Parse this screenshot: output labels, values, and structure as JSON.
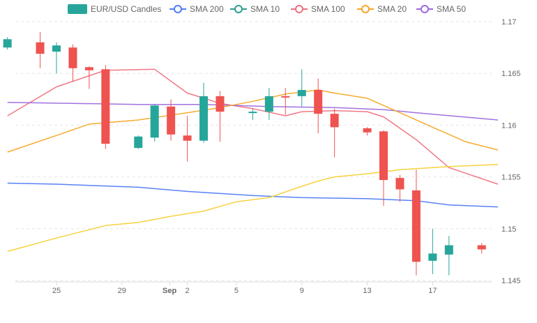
{
  "chart_data": {
    "type": "candlestick",
    "x_tick_labels": [
      "25",
      "29",
      "Sep",
      "2",
      "5",
      "9",
      "13",
      "17"
    ],
    "y_tick_labels": [
      "1.17",
      "1.165",
      "1.16",
      "1.155",
      "1.15",
      "1.145"
    ],
    "ylim": [
      1.145,
      1.17
    ],
    "grid": true,
    "legend_position": "top",
    "colors": {
      "up": "#26a69a",
      "down": "#ef5350",
      "sma200": "#4f7cf5",
      "sma10": "#2a9d8f",
      "sma100": "#f07080",
      "sma20": "#f5a623",
      "sma50": "#9c6ade"
    },
    "legend": [
      {
        "key": "candles",
        "label": "EUR/USD Candles"
      },
      {
        "key": "sma200",
        "label": "SMA 200"
      },
      {
        "key": "sma10",
        "label": "SMA 10"
      },
      {
        "key": "sma100",
        "label": "SMA 100"
      },
      {
        "key": "sma20",
        "label": "SMA 20"
      },
      {
        "key": "sma50",
        "label": "SMA 50"
      }
    ],
    "candles": [
      {
        "date": "2025-08-22",
        "open": 1.1675,
        "high": 1.1685,
        "low": 1.1673,
        "close": 1.1683
      },
      {
        "date": "2025-08-24",
        "open": 1.168,
        "high": 1.169,
        "low": 1.1655,
        "close": 1.1669
      },
      {
        "date": "2025-08-25",
        "open": 1.1671,
        "high": 1.168,
        "low": 1.165,
        "close": 1.1677
      },
      {
        "date": "2025-08-26",
        "open": 1.1675,
        "high": 1.1678,
        "low": 1.1642,
        "close": 1.1655
      },
      {
        "date": "2025-08-27",
        "open": 1.1656,
        "high": 1.1657,
        "low": 1.1635,
        "close": 1.1653
      },
      {
        "date": "2025-08-28",
        "open": 1.1654,
        "high": 1.1658,
        "low": 1.1577,
        "close": 1.1582
      },
      {
        "date": "2025-08-30",
        "open": 1.1578,
        "high": 1.159,
        "low": 1.1577,
        "close": 1.1589
      },
      {
        "date": "2025-08-31",
        "open": 1.1588,
        "high": 1.162,
        "low": 1.1584,
        "close": 1.1619
      },
      {
        "date": "2025-09-01",
        "open": 1.1618,
        "high": 1.1625,
        "low": 1.1585,
        "close": 1.1591
      },
      {
        "date": "2025-09-02",
        "open": 1.159,
        "high": 1.1609,
        "low": 1.1565,
        "close": 1.1585
      },
      {
        "date": "2025-09-03",
        "open": 1.1585,
        "high": 1.1641,
        "low": 1.1583,
        "close": 1.1628
      },
      {
        "date": "2025-09-04",
        "open": 1.1628,
        "high": 1.1633,
        "low": 1.1584,
        "close": 1.1613
      },
      {
        "date": "2025-09-06",
        "open": 1.1613,
        "high": 1.1616,
        "low": 1.1605,
        "close": 1.1613
      },
      {
        "date": "2025-09-07",
        "open": 1.1613,
        "high": 1.1636,
        "low": 1.1605,
        "close": 1.1628
      },
      {
        "date": "2025-09-08",
        "open": 1.1628,
        "high": 1.1636,
        "low": 1.161,
        "close": 1.1627
      },
      {
        "date": "2025-09-09",
        "open": 1.1628,
        "high": 1.1654,
        "low": 1.1618,
        "close": 1.1634
      },
      {
        "date": "2025-09-10",
        "open": 1.1634,
        "high": 1.1645,
        "low": 1.1592,
        "close": 1.1611
      },
      {
        "date": "2025-09-11",
        "open": 1.1611,
        "high": 1.1616,
        "low": 1.1569,
        "close": 1.1598
      },
      {
        "date": "2025-09-13",
        "open": 1.1597,
        "high": 1.1598,
        "low": 1.159,
        "close": 1.1593
      },
      {
        "date": "2025-09-14",
        "open": 1.1594,
        "high": 1.1595,
        "low": 1.1522,
        "close": 1.1547
      },
      {
        "date": "2025-09-15",
        "open": 1.1549,
        "high": 1.1552,
        "low": 1.1526,
        "close": 1.1538
      },
      {
        "date": "2025-09-16",
        "open": 1.1537,
        "high": 1.1557,
        "low": 1.1455,
        "close": 1.1468
      },
      {
        "date": "2025-09-17",
        "open": 1.1469,
        "high": 1.15,
        "low": 1.1456,
        "close": 1.1476
      },
      {
        "date": "2025-09-18",
        "open": 1.1475,
        "high": 1.1493,
        "low": 1.1455,
        "close": 1.1484
      },
      {
        "date": "2025-09-20",
        "open": 1.1484,
        "high": 1.1486,
        "low": 1.1476,
        "close": 1.148
      }
    ],
    "series": [
      {
        "key": "sma200",
        "label": "SMA 200",
        "points": [
          [
            "2025-08-22",
            1.1544
          ],
          [
            "2025-08-25",
            1.1543
          ],
          [
            "2025-08-30",
            1.154
          ],
          [
            "2025-09-02",
            1.1536
          ],
          [
            "2025-09-06",
            1.1532
          ],
          [
            "2025-09-09",
            1.153
          ],
          [
            "2025-09-13",
            1.1529
          ],
          [
            "2025-09-16",
            1.1527
          ],
          [
            "2025-09-18",
            1.1523
          ],
          [
            "2025-09-21",
            1.1521
          ]
        ]
      },
      {
        "key": "sma100",
        "label": "SMA 100",
        "points": [
          [
            "2025-08-22",
            1.1609
          ],
          [
            "2025-08-25",
            1.1637
          ],
          [
            "2025-08-28",
            1.1653
          ],
          [
            "2025-08-31",
            1.1654
          ],
          [
            "2025-09-02",
            1.1631
          ],
          [
            "2025-09-04",
            1.1621
          ],
          [
            "2025-09-06",
            1.1616
          ],
          [
            "2025-09-08",
            1.1609
          ],
          [
            "2025-09-09",
            1.1613
          ],
          [
            "2025-09-11",
            1.1614
          ],
          [
            "2025-09-13",
            1.1613
          ],
          [
            "2025-09-14",
            1.1608
          ],
          [
            "2025-09-16",
            1.1586
          ],
          [
            "2025-09-18",
            1.1559
          ],
          [
            "2025-09-21",
            1.1543
          ]
        ]
      },
      {
        "key": "sma50",
        "label": "SMA 50",
        "points": [
          [
            "2025-08-22",
            1.1622
          ],
          [
            "2025-08-26",
            1.1621
          ],
          [
            "2025-08-30",
            1.162
          ],
          [
            "2025-09-03",
            1.162
          ],
          [
            "2025-09-07",
            1.1618
          ],
          [
            "2025-09-11",
            1.1617
          ],
          [
            "2025-09-14",
            1.1615
          ],
          [
            "2025-09-16",
            1.1612
          ],
          [
            "2025-09-21",
            1.1605
          ]
        ]
      },
      {
        "key": "sma20",
        "label": "SMA 20",
        "points": [
          [
            "2025-08-22",
            1.1574
          ],
          [
            "2025-08-25",
            1.159
          ],
          [
            "2025-08-27",
            1.1601
          ],
          [
            "2025-08-30",
            1.1605
          ],
          [
            "2025-09-02",
            1.1612
          ],
          [
            "2025-09-04",
            1.1617
          ],
          [
            "2025-09-06",
            1.1623
          ],
          [
            "2025-09-08",
            1.163
          ],
          [
            "2025-09-10",
            1.1634
          ],
          [
            "2025-09-11",
            1.1631
          ],
          [
            "2025-09-13",
            1.1626
          ],
          [
            "2025-09-15",
            1.1612
          ],
          [
            "2025-09-17",
            1.1598
          ],
          [
            "2025-09-19",
            1.1584
          ],
          [
            "2025-09-21",
            1.1576
          ]
        ]
      },
      {
        "key": "sma10",
        "label": "SMA 10",
        "points": [
          [
            "2025-08-22",
            1.1478
          ],
          [
            "2025-08-25",
            1.1491
          ],
          [
            "2025-08-28",
            1.1503
          ],
          [
            "2025-08-30",
            1.1506
          ],
          [
            "2025-09-01",
            1.1512
          ],
          [
            "2025-09-03",
            1.1517
          ],
          [
            "2025-09-05",
            1.1526
          ],
          [
            "2025-09-07",
            1.153
          ],
          [
            "2025-09-09",
            1.1541
          ],
          [
            "2025-09-10",
            1.1546
          ],
          [
            "2025-09-11",
            1.155
          ],
          [
            "2025-09-13",
            1.1553
          ],
          [
            "2025-09-15",
            1.1557
          ],
          [
            "2025-09-18",
            1.156
          ],
          [
            "2025-09-21",
            1.1562
          ]
        ]
      }
    ]
  }
}
